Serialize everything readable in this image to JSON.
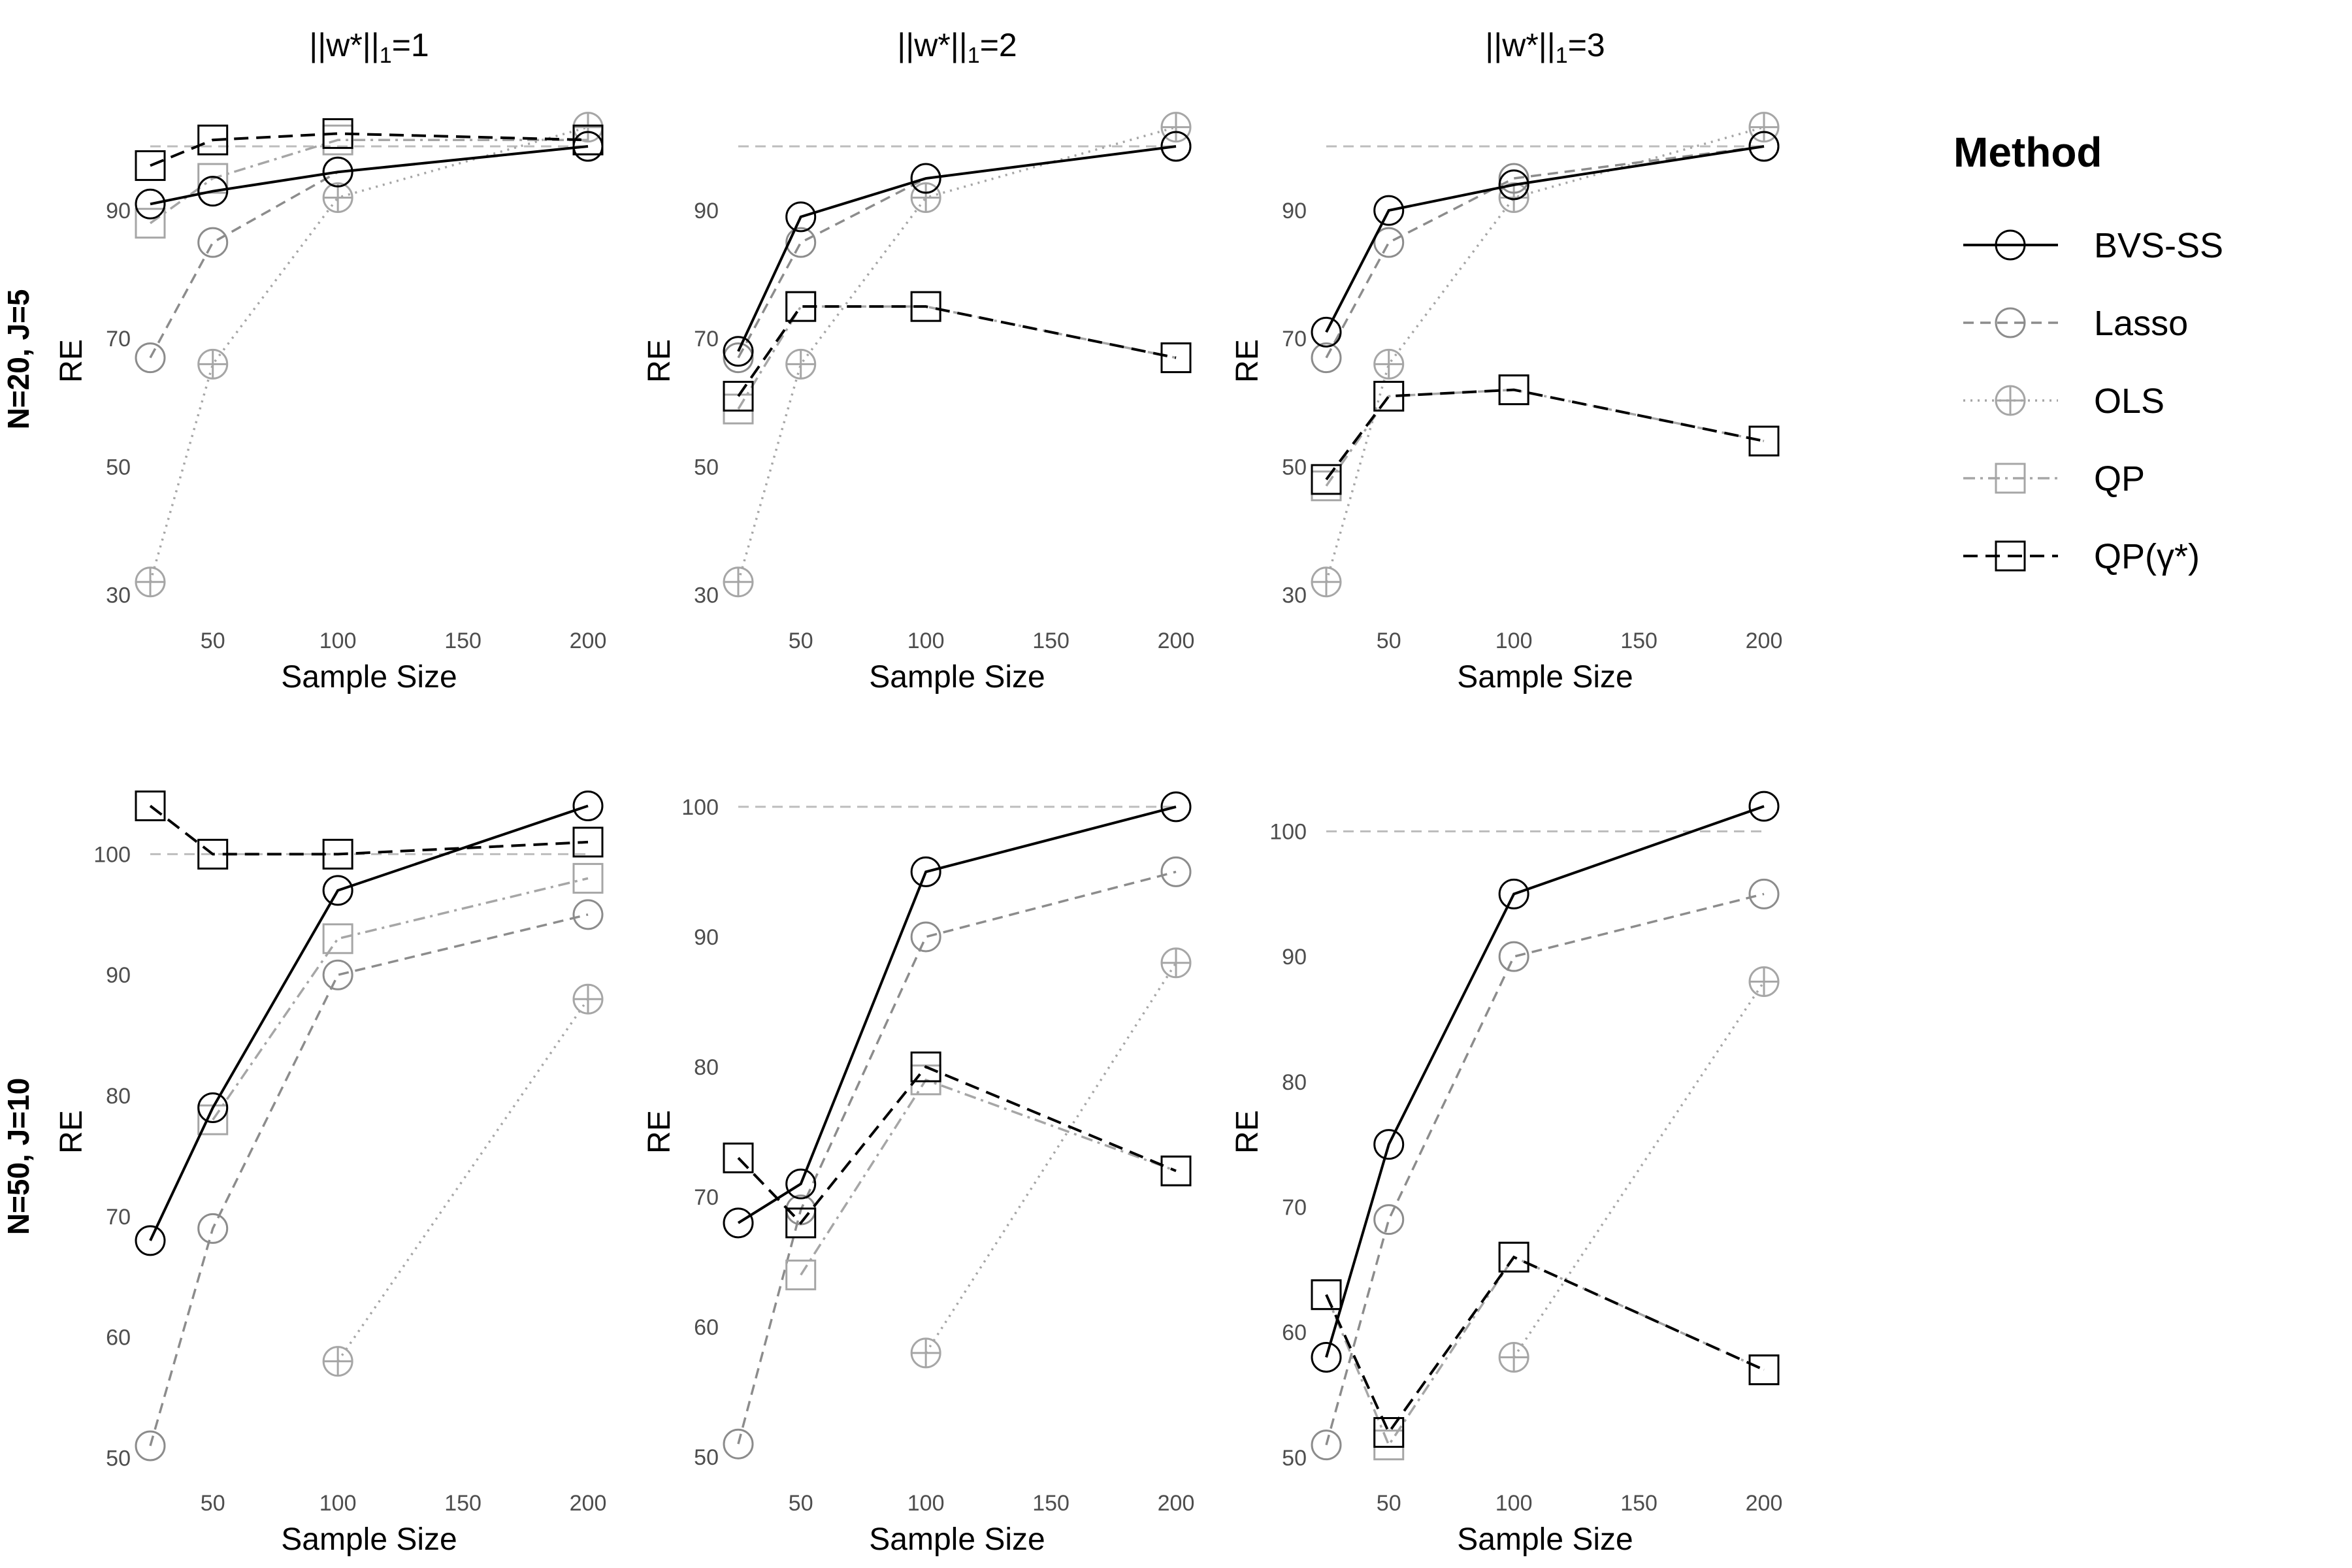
{
  "figure": {
    "legend": {
      "title": "Method",
      "entries": [
        {
          "key": "BVS-SS",
          "label": "BVS-SS"
        },
        {
          "key": "Lasso",
          "label": "Lasso"
        },
        {
          "key": "OLS",
          "label": "OLS"
        },
        {
          "key": "QP",
          "label": "QP"
        },
        {
          "key": "QPg",
          "label": "QP(γ*)"
        }
      ]
    },
    "row_labels": [
      "N=20, J=5",
      "N=50, J=10"
    ]
  },
  "chart_data": [
    {
      "type": "line",
      "panel": "r0c0",
      "title": "||w*||1=1",
      "xlabel": "Sample Size",
      "ylabel": "RE",
      "xlim": [
        25,
        200
      ],
      "ylim": [
        28,
        105
      ],
      "xticks": [
        50,
        100,
        150,
        200
      ],
      "yticks": [
        30,
        50,
        70,
        90
      ],
      "reference_line": 100,
      "series": [
        {
          "name": "OLS",
          "x": [
            25,
            50,
            100,
            200
          ],
          "y": [
            32,
            66,
            92,
            103
          ]
        },
        {
          "name": "Lasso",
          "x": [
            25,
            50,
            100,
            200
          ],
          "y": [
            67,
            85,
            96,
            100
          ]
        },
        {
          "name": "QP",
          "x": [
            25,
            50,
            100,
            200
          ],
          "y": [
            88,
            95,
            101,
            101
          ]
        },
        {
          "name": "BVS-SS",
          "x": [
            25,
            50,
            100,
            200
          ],
          "y": [
            91,
            93,
            96,
            100
          ]
        },
        {
          "name": "QPg",
          "x": [
            25,
            50,
            100,
            200
          ],
          "y": [
            97,
            101,
            102,
            101
          ]
        }
      ]
    },
    {
      "type": "line",
      "panel": "r0c1",
      "title": "||w*||1=2",
      "xlabel": "Sample Size",
      "ylabel": "RE",
      "xlim": [
        25,
        200
      ],
      "ylim": [
        28,
        105
      ],
      "xticks": [
        50,
        100,
        150,
        200
      ],
      "yticks": [
        30,
        50,
        70,
        90
      ],
      "reference_line": 100,
      "series": [
        {
          "name": "OLS",
          "x": [
            25,
            50,
            100,
            200
          ],
          "y": [
            32,
            66,
            92,
            103
          ]
        },
        {
          "name": "Lasso",
          "x": [
            25,
            50,
            100,
            200
          ],
          "y": [
            67,
            85,
            95,
            100
          ]
        },
        {
          "name": "QP",
          "x": [
            25,
            50,
            100,
            200
          ],
          "y": [
            59,
            75,
            75,
            67
          ]
        },
        {
          "name": "BVS-SS",
          "x": [
            25,
            50,
            100,
            200
          ],
          "y": [
            68,
            89,
            95,
            100
          ]
        },
        {
          "name": "QPg",
          "x": [
            25,
            50,
            100,
            200
          ],
          "y": [
            61,
            75,
            75,
            67
          ]
        }
      ]
    },
    {
      "type": "line",
      "panel": "r0c2",
      "title": "||w*||1=3",
      "xlabel": "Sample Size",
      "ylabel": "RE",
      "xlim": [
        25,
        200
      ],
      "ylim": [
        28,
        105
      ],
      "xticks": [
        50,
        100,
        150,
        200
      ],
      "yticks": [
        30,
        50,
        70,
        90
      ],
      "reference_line": 100,
      "series": [
        {
          "name": "OLS",
          "x": [
            25,
            50,
            100,
            200
          ],
          "y": [
            32,
            66,
            92,
            103
          ]
        },
        {
          "name": "Lasso",
          "x": [
            25,
            50,
            100,
            200
          ],
          "y": [
            67,
            85,
            95,
            100
          ]
        },
        {
          "name": "QP",
          "x": [
            25,
            50,
            100,
            200
          ],
          "y": [
            47,
            61,
            62,
            54
          ]
        },
        {
          "name": "BVS-SS",
          "x": [
            25,
            50,
            100,
            200
          ],
          "y": [
            71,
            90,
            94,
            100
          ]
        },
        {
          "name": "QPg",
          "x": [
            25,
            50,
            100,
            200
          ],
          "y": [
            48,
            61,
            62,
            54
          ]
        }
      ]
    },
    {
      "type": "line",
      "panel": "r1c0",
      "title": "",
      "xlabel": "Sample Size",
      "ylabel": "RE",
      "xlim": [
        25,
        200
      ],
      "ylim": [
        49,
        105
      ],
      "xticks": [
        50,
        100,
        150,
        200
      ],
      "yticks": [
        50,
        60,
        70,
        80,
        90,
        100
      ],
      "reference_line": 100,
      "series": [
        {
          "name": "OLS",
          "x": [
            100,
            200
          ],
          "y": [
            58,
            88
          ]
        },
        {
          "name": "Lasso",
          "x": [
            25,
            50,
            100,
            200
          ],
          "y": [
            51,
            69,
            90,
            95
          ]
        },
        {
          "name": "QP",
          "x": [
            50,
            100,
            200
          ],
          "y": [
            78,
            93,
            98
          ]
        },
        {
          "name": "BVS-SS",
          "x": [
            25,
            50,
            100,
            200
          ],
          "y": [
            68,
            79,
            97,
            104
          ]
        },
        {
          "name": "QPg",
          "x": [
            25,
            50,
            100,
            200
          ],
          "y": [
            104,
            100,
            100,
            101
          ]
        }
      ]
    },
    {
      "type": "line",
      "panel": "r1c1",
      "title": "",
      "xlabel": "Sample Size",
      "ylabel": "RE",
      "xlim": [
        25,
        200
      ],
      "ylim": [
        49,
        101
      ],
      "xticks": [
        50,
        100,
        150,
        200
      ],
      "yticks": [
        50,
        60,
        70,
        80,
        90,
        100
      ],
      "reference_line": 100,
      "series": [
        {
          "name": "OLS",
          "x": [
            100,
            200
          ],
          "y": [
            58,
            88
          ]
        },
        {
          "name": "Lasso",
          "x": [
            25,
            50,
            100,
            200
          ],
          "y": [
            51,
            69,
            90,
            95
          ]
        },
        {
          "name": "QP",
          "x": [
            50,
            100,
            200
          ],
          "y": [
            64,
            79,
            72
          ]
        },
        {
          "name": "BVS-SS",
          "x": [
            25,
            50,
            100,
            200
          ],
          "y": [
            68,
            71,
            95,
            100
          ]
        },
        {
          "name": "QPg",
          "x": [
            25,
            50,
            100,
            200
          ],
          "y": [
            73,
            68,
            80,
            72
          ]
        }
      ]
    },
    {
      "type": "line",
      "panel": "r1c2",
      "title": "",
      "xlabel": "Sample Size",
      "ylabel": "RE",
      "xlim": [
        25,
        200
      ],
      "ylim": [
        49,
        103
      ],
      "xticks": [
        50,
        100,
        150,
        200
      ],
      "yticks": [
        50,
        60,
        70,
        80,
        90,
        100
      ],
      "reference_line": 100,
      "series": [
        {
          "name": "OLS",
          "x": [
            100,
            200
          ],
          "y": [
            58,
            88
          ]
        },
        {
          "name": "Lasso",
          "x": [
            25,
            50,
            100,
            200
          ],
          "y": [
            51,
            69,
            90,
            95
          ]
        },
        {
          "name": "QP",
          "x": [
            25,
            50,
            100,
            200
          ],
          "y": [
            63,
            51,
            66,
            57
          ]
        },
        {
          "name": "BVS-SS",
          "x": [
            25,
            50,
            100,
            200
          ],
          "y": [
            58,
            75,
            95,
            102
          ]
        },
        {
          "name": "QPg",
          "x": [
            25,
            50,
            100,
            200
          ],
          "y": [
            63,
            52,
            66,
            57
          ]
        }
      ]
    }
  ]
}
